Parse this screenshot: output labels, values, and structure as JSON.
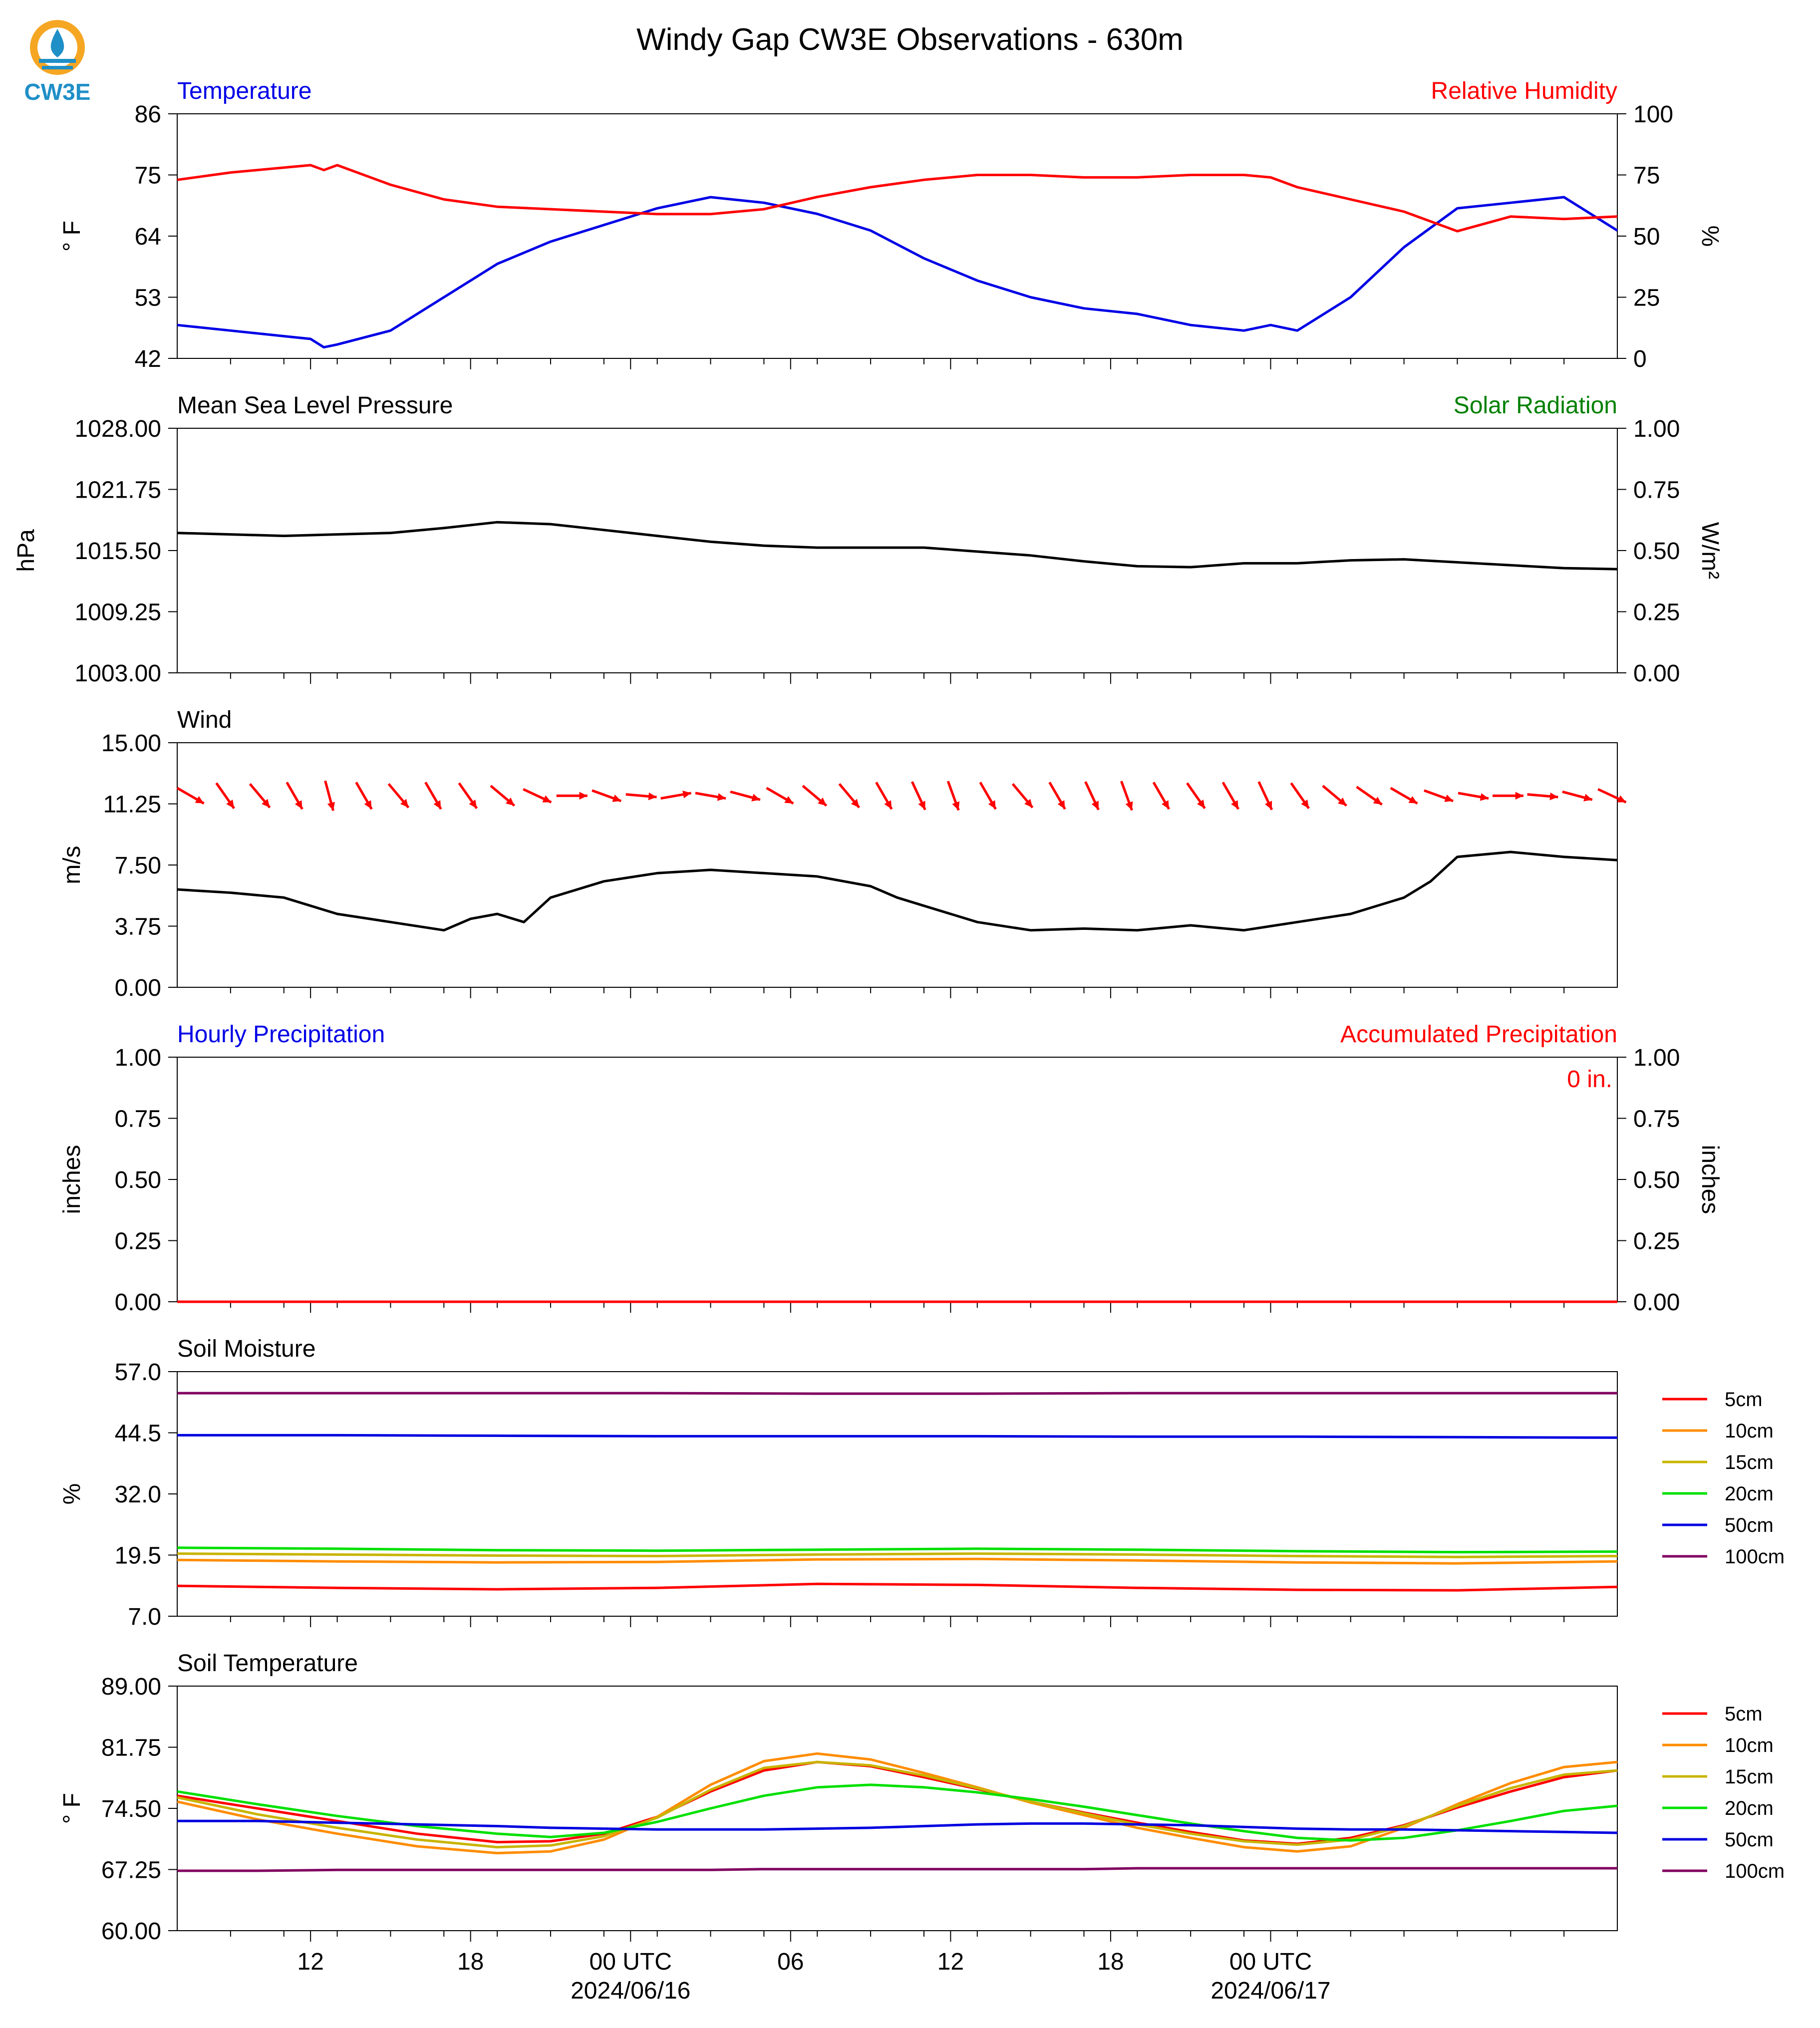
{
  "title": "Windy Gap CW3E Observations - 630m",
  "logo": {
    "text": "CW3E",
    "icon": "cw3e-logo-icon",
    "colors": [
      "#f5a623",
      "#1f8fc7"
    ]
  },
  "time_axis": {
    "ticks": [
      "12",
      "18",
      "00 UTC",
      "06",
      "12",
      "18",
      "00 UTC"
    ],
    "date_labels": [
      "2024/06/16",
      "2024/06/17"
    ]
  },
  "legend": {
    "entries": [
      {
        "name": "5cm",
        "color": "#ff0000"
      },
      {
        "name": "10cm",
        "color": "#ff8c00"
      },
      {
        "name": "15cm",
        "color": "#c8b400"
      },
      {
        "name": "20cm",
        "color": "#00e000"
      },
      {
        "name": "50cm",
        "color": "#0000e0"
      },
      {
        "name": "100cm",
        "color": "#800060"
      }
    ]
  },
  "chart_data": [
    {
      "type": "line",
      "panel": "temperature-humidity",
      "title_left": "Temperature",
      "title_right": "Relative Humidity",
      "ylabel": "° F",
      "ylabel_right": "%",
      "ylim": [
        42,
        86
      ],
      "ylim_right": [
        0,
        100
      ],
      "yticks": [
        "42",
        "53",
        "64",
        "75",
        "86"
      ],
      "yticks_right": [
        "0",
        "25",
        "50",
        "75",
        "100"
      ],
      "x_hours": [
        0,
        2,
        4,
        5,
        5.5,
        6,
        8,
        10,
        12,
        14,
        16,
        18,
        20,
        22,
        24,
        26,
        28,
        30,
        32,
        34,
        36,
        38,
        40,
        41,
        42,
        44,
        46,
        48,
        50,
        52,
        54
      ],
      "series": [
        {
          "color": "#0000e6",
          "values": [
            48,
            47,
            46,
            45.5,
            44,
            44.5,
            47,
            53,
            59,
            63,
            66,
            69,
            71,
            70,
            68,
            65,
            60,
            56,
            53,
            51,
            50,
            48,
            47,
            48,
            47,
            53,
            62,
            69,
            70,
            71,
            65
          ]
        },
        {
          "color": "#ff0000",
          "values": [
            73,
            76,
            78,
            79,
            77,
            79,
            71,
            65,
            62,
            61,
            60,
            59,
            59,
            61,
            66,
            70,
            73,
            75,
            75,
            74,
            74,
            75,
            75,
            74,
            70,
            65,
            60,
            52,
            58,
            57,
            58
          ]
        }
      ]
    },
    {
      "type": "line",
      "panel": "pressure-solar",
      "title_left": "Mean Sea Level Pressure",
      "title_right": "Solar Radiation",
      "ylabel": "hPa",
      "ylabel_right": "W/m²",
      "ylim": [
        1003,
        1028
      ],
      "ylim_right": [
        0,
        1
      ],
      "yticks": [
        "1003.00",
        "1009.25",
        "1015.50",
        "1021.75",
        "1028.00"
      ],
      "yticks_right": [
        "0.00",
        "0.25",
        "0.50",
        "0.75",
        "1.00"
      ],
      "x_hours": [
        0,
        4,
        8,
        10,
        12,
        14,
        16,
        18,
        20,
        22,
        24,
        26,
        28,
        30,
        32,
        34,
        36,
        38,
        40,
        42,
        44,
        46,
        48,
        50,
        52,
        54
      ],
      "series": [
        {
          "color": "#000000",
          "values": [
            1017.3,
            1017.0,
            1017.3,
            1017.8,
            1018.4,
            1018.2,
            1017.6,
            1017.0,
            1016.4,
            1016.0,
            1015.8,
            1015.8,
            1015.8,
            1015.4,
            1015.0,
            1014.4,
            1013.9,
            1013.8,
            1014.2,
            1014.2,
            1014.5,
            1014.6,
            1014.3,
            1014.0,
            1013.7,
            1013.6
          ]
        }
      ]
    },
    {
      "type": "line",
      "panel": "wind",
      "title_left": "Wind",
      "ylabel": "m/s",
      "ylim": [
        0,
        15
      ],
      "yticks": [
        "0.00",
        "3.75",
        "7.50",
        "11.25",
        "15.00"
      ],
      "x_hours": [
        0,
        2,
        4,
        6,
        8,
        10,
        11,
        12,
        13,
        14,
        16,
        18,
        20,
        22,
        24,
        26,
        27,
        28,
        30,
        32,
        34,
        36,
        38,
        40,
        42,
        44,
        46,
        47,
        48,
        50,
        52,
        54
      ],
      "series": [
        {
          "color": "#000000",
          "values": [
            6.0,
            5.8,
            5.5,
            4.5,
            4.0,
            3.5,
            4.2,
            4.5,
            4.0,
            5.5,
            6.5,
            7.0,
            7.2,
            7.0,
            6.8,
            6.2,
            5.5,
            5.0,
            4.0,
            3.5,
            3.6,
            3.5,
            3.8,
            3.5,
            4.0,
            4.5,
            5.5,
            6.5,
            8.0,
            8.3,
            8.0,
            7.8
          ]
        }
      ],
      "wind_barbs": {
        "color": "#ff0000",
        "x_hours": [
          0.5,
          1.8,
          3.1,
          4.4,
          5.7,
          7.0,
          8.3,
          9.6,
          10.9,
          12.2,
          13.5,
          14.8,
          16.1,
          17.4,
          18.7,
          20.0,
          21.3,
          22.6,
          23.9,
          25.2,
          26.5,
          27.8,
          29.1,
          30.4,
          31.7,
          33.0,
          34.3,
          35.6,
          36.9,
          38.2,
          39.5,
          40.8,
          42.1,
          43.4,
          44.7,
          46.0,
          47.3,
          48.6,
          49.9,
          51.2,
          52.5,
          53.8
        ],
        "direction_deg": [
          300,
          325,
          320,
          330,
          345,
          330,
          320,
          330,
          325,
          310,
          295,
          270,
          290,
          275,
          260,
          280,
          285,
          300,
          310,
          320,
          330,
          335,
          340,
          330,
          320,
          330,
          335,
          340,
          330,
          325,
          330,
          335,
          325,
          310,
          305,
          300,
          290,
          280,
          270,
          275,
          285,
          295
        ]
      }
    },
    {
      "type": "line",
      "panel": "precipitation",
      "title_left": "Hourly Precipitation",
      "title_right": "Accumulated Precipitation",
      "annotation": "0 in.",
      "ylabel": "inches",
      "ylabel_right": "inches",
      "ylim": [
        0,
        1
      ],
      "ylim_right": [
        0,
        1
      ],
      "yticks": [
        "0.00",
        "0.25",
        "0.50",
        "0.75",
        "1.00"
      ],
      "yticks_right": [
        "0.00",
        "0.25",
        "0.50",
        "0.75",
        "1.00"
      ],
      "x_hours": [
        0,
        54
      ],
      "series": [
        {
          "color": "#0000e6",
          "values": [
            0,
            0
          ]
        },
        {
          "color": "#ff0000",
          "values": [
            0,
            0
          ]
        }
      ]
    },
    {
      "type": "line",
      "panel": "soil-moisture",
      "title_left": "Soil Moisture",
      "ylabel": "%",
      "ylim": [
        7,
        57
      ],
      "yticks": [
        "7.0",
        "19.5",
        "32.0",
        "44.5",
        "57.0"
      ],
      "x_hours": [
        0,
        6,
        12,
        18,
        24,
        30,
        36,
        42,
        48,
        54
      ],
      "series": [
        {
          "name": "5cm",
          "color": "#ff0000",
          "values": [
            13.2,
            12.8,
            12.5,
            12.8,
            13.6,
            13.4,
            12.8,
            12.4,
            12.3,
            13.0
          ]
        },
        {
          "name": "10cm",
          "color": "#ff8c00",
          "values": [
            18.5,
            18.2,
            18.0,
            18.1,
            18.6,
            18.7,
            18.4,
            18.0,
            17.8,
            18.2
          ]
        },
        {
          "name": "15cm",
          "color": "#c8b400",
          "values": [
            19.8,
            19.6,
            19.4,
            19.3,
            19.6,
            19.8,
            19.6,
            19.3,
            19.1,
            19.3
          ]
        },
        {
          "name": "20cm",
          "color": "#00e000",
          "values": [
            21.0,
            20.8,
            20.5,
            20.4,
            20.6,
            20.8,
            20.6,
            20.3,
            20.1,
            20.2
          ]
        },
        {
          "name": "50cm",
          "color": "#0000e0",
          "values": [
            44.0,
            44.0,
            43.9,
            43.8,
            43.8,
            43.8,
            43.7,
            43.7,
            43.6,
            43.5
          ]
        },
        {
          "name": "100cm",
          "color": "#800060",
          "values": [
            52.6,
            52.6,
            52.6,
            52.6,
            52.5,
            52.5,
            52.6,
            52.6,
            52.6,
            52.6
          ]
        }
      ]
    },
    {
      "type": "line",
      "panel": "soil-temperature",
      "title_left": "Soil Temperature",
      "ylabel": "° F",
      "ylim": [
        60,
        89
      ],
      "yticks": [
        "60.00",
        "67.25",
        "74.50",
        "81.75",
        "89.00"
      ],
      "x_hours": [
        0,
        3,
        6,
        9,
        12,
        14,
        16,
        18,
        20,
        22,
        24,
        26,
        28,
        30,
        32,
        34,
        36,
        38,
        40,
        42,
        44,
        46,
        48,
        50,
        52,
        54
      ],
      "series": [
        {
          "name": "5cm",
          "color": "#ff0000",
          "values": [
            76.0,
            74.5,
            73.0,
            71.5,
            70.5,
            70.6,
            71.5,
            73.5,
            76.5,
            79.0,
            80.0,
            79.5,
            78.2,
            76.8,
            75.3,
            74.0,
            72.8,
            71.7,
            70.7,
            70.3,
            71.0,
            72.5,
            74.6,
            76.5,
            78.2,
            79.0
          ]
        },
        {
          "name": "10cm",
          "color": "#ff8c00",
          "values": [
            75.3,
            73.2,
            71.5,
            70.0,
            69.2,
            69.4,
            70.8,
            73.5,
            77.3,
            80.1,
            81.0,
            80.3,
            78.7,
            77.0,
            75.2,
            73.7,
            72.2,
            71.0,
            69.9,
            69.4,
            70.0,
            72.2,
            75.0,
            77.5,
            79.4,
            80.0
          ]
        },
        {
          "name": "15cm",
          "color": "#c8b400",
          "values": [
            75.8,
            73.8,
            72.2,
            70.8,
            69.9,
            70.1,
            71.2,
            73.4,
            76.7,
            79.3,
            80.0,
            79.6,
            78.4,
            76.9,
            75.3,
            73.9,
            72.6,
            71.5,
            70.6,
            70.2,
            70.8,
            72.4,
            74.8,
            76.9,
            78.5,
            79.0
          ]
        },
        {
          "name": "20cm",
          "color": "#00e000",
          "values": [
            76.5,
            75.0,
            73.6,
            72.4,
            71.5,
            71.1,
            71.6,
            72.9,
            74.5,
            76.0,
            77.0,
            77.3,
            77.0,
            76.4,
            75.6,
            74.7,
            73.7,
            72.7,
            71.8,
            71.0,
            70.7,
            71.0,
            71.9,
            73.0,
            74.2,
            74.8
          ]
        },
        {
          "name": "50cm",
          "color": "#0000e0",
          "values": [
            73.0,
            73.0,
            72.8,
            72.6,
            72.4,
            72.2,
            72.1,
            72.0,
            72.0,
            72.0,
            72.1,
            72.2,
            72.4,
            72.6,
            72.7,
            72.7,
            72.6,
            72.5,
            72.3,
            72.1,
            72.0,
            72.0,
            71.9,
            71.8,
            71.7,
            71.6
          ]
        },
        {
          "name": "100cm",
          "color": "#800060",
          "values": [
            67.1,
            67.1,
            67.2,
            67.2,
            67.2,
            67.2,
            67.2,
            67.2,
            67.2,
            67.3,
            67.3,
            67.3,
            67.3,
            67.3,
            67.3,
            67.3,
            67.4,
            67.4,
            67.4,
            67.4,
            67.4,
            67.4,
            67.4,
            67.4,
            67.4,
            67.4
          ]
        }
      ]
    }
  ]
}
